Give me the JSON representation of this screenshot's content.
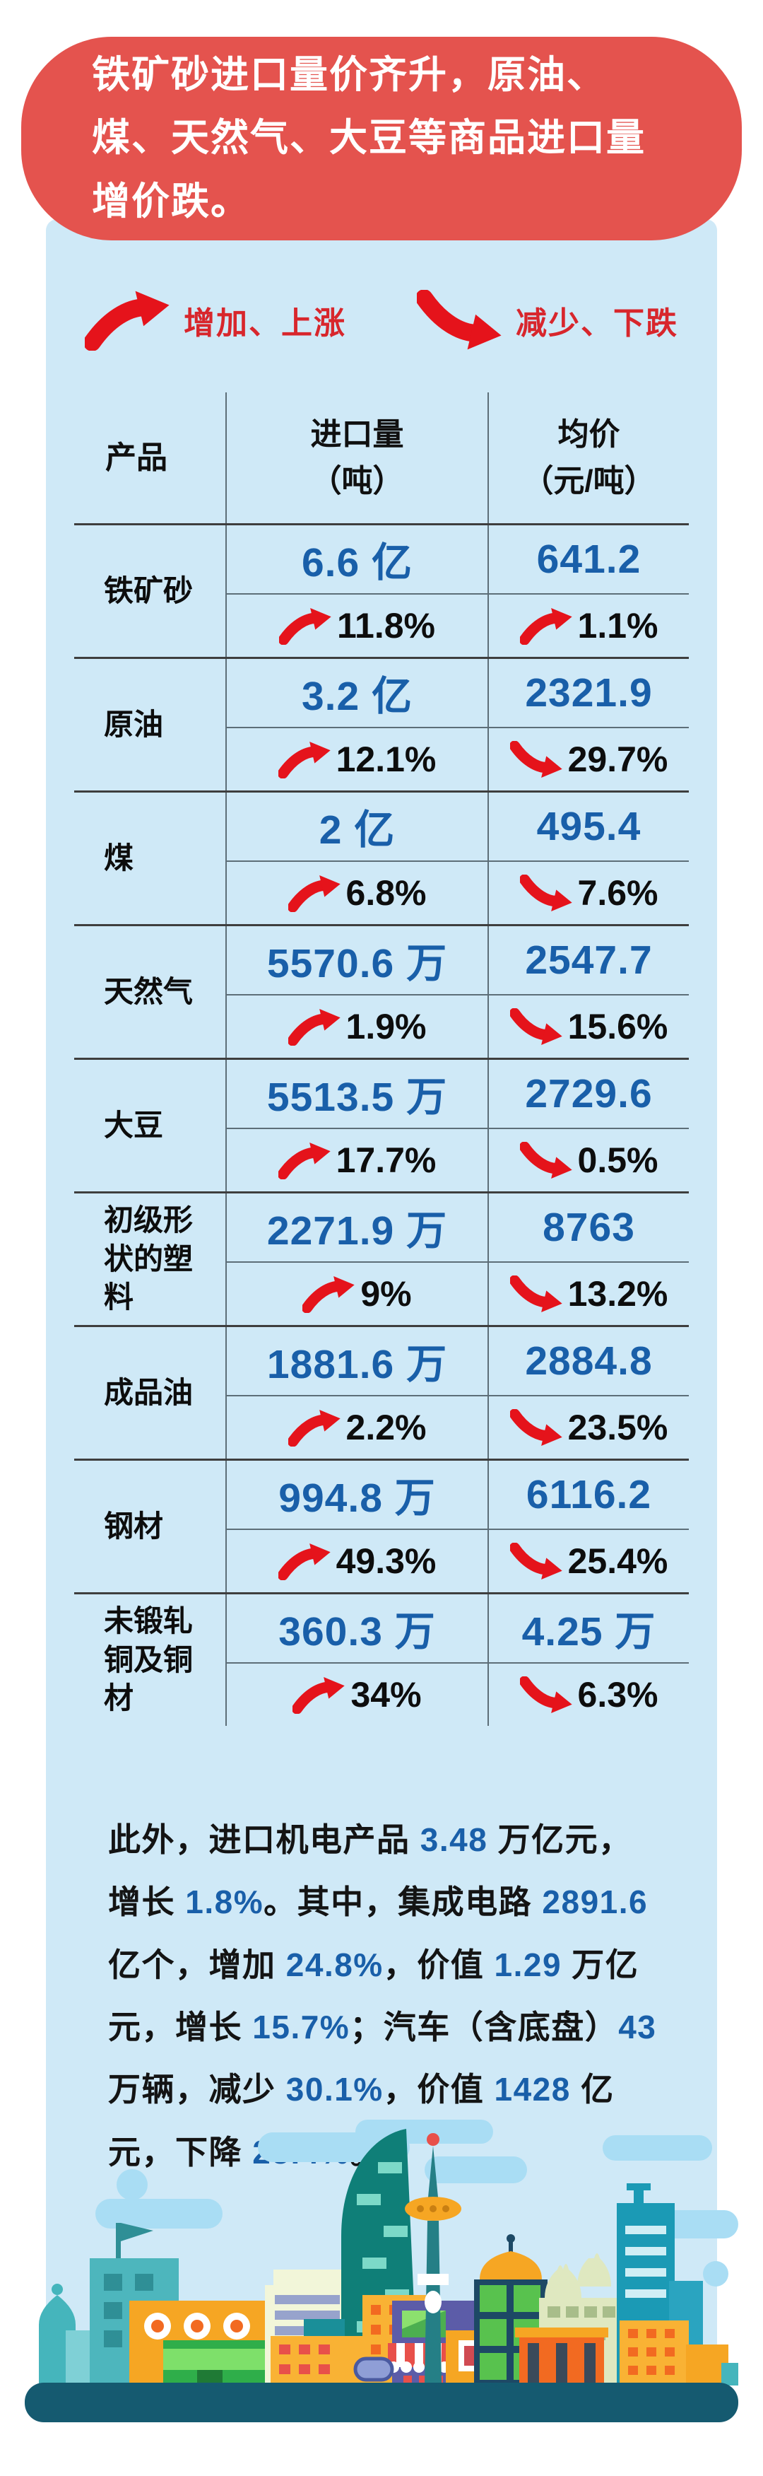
{
  "banner": {
    "title": "铁矿砂进口量价齐升，原油、煤、天然气、大豆等商品进口量增价跌。",
    "bg_color": "#e4534e",
    "text_color": "#ffffff"
  },
  "legend": {
    "up_label": "增加、上涨",
    "down_label": "减少、下跌",
    "arrow_color": "#e5131b",
    "text_color": "#d8262c"
  },
  "table": {
    "headers": {
      "product": "产品",
      "volume": "进口量\n（吨）",
      "price": "均价\n（元/吨）"
    }
  },
  "chart_data": {
    "type": "table",
    "title": "铁矿砂进口量价齐升，原油、煤、天然气、大豆等商品进口量增价跌。",
    "columns": [
      "产品",
      "进口量（吨）",
      "均价（元/吨）"
    ],
    "legend": [
      "增加、上涨",
      "减少、下跌"
    ],
    "rows": [
      {
        "product": "铁矿砂",
        "volume": "6.6 亿",
        "volume_change": "11.8%",
        "volume_dir": "up",
        "price": "641.2",
        "price_change": "1.1%",
        "price_dir": "up"
      },
      {
        "product": "原油",
        "volume": "3.2 亿",
        "volume_change": "12.1%",
        "volume_dir": "up",
        "price": "2321.9",
        "price_change": "29.7%",
        "price_dir": "down"
      },
      {
        "product": "煤",
        "volume": "2 亿",
        "volume_change": "6.8%",
        "volume_dir": "up",
        "price": "495.4",
        "price_change": "7.6%",
        "price_dir": "down"
      },
      {
        "product": "天然气",
        "volume": "5570.6 万",
        "volume_change": "1.9%",
        "volume_dir": "up",
        "price": "2547.7",
        "price_change": "15.6%",
        "price_dir": "down"
      },
      {
        "product": "大豆",
        "volume": "5513.5 万",
        "volume_change": "17.7%",
        "volume_dir": "up",
        "price": "2729.6",
        "price_change": "0.5%",
        "price_dir": "down"
      },
      {
        "product": "初级形状的塑料",
        "volume": "2271.9 万",
        "volume_change": "9%",
        "volume_dir": "up",
        "price": "8763",
        "price_change": "13.2%",
        "price_dir": "down"
      },
      {
        "product": "成品油",
        "volume": "1881.6 万",
        "volume_change": "2.2%",
        "volume_dir": "up",
        "price": "2884.8",
        "price_change": "23.5%",
        "price_dir": "down"
      },
      {
        "product": "钢材",
        "volume": "994.8 万",
        "volume_change": "49.3%",
        "volume_dir": "up",
        "price": "6116.2",
        "price_change": "25.4%",
        "price_dir": "down"
      },
      {
        "product": "未锻轧铜及铜材",
        "volume": "360.3 万",
        "volume_change": "34%",
        "volume_dir": "up",
        "price": "4.25 万",
        "price_change": "6.3%",
        "price_dir": "down"
      }
    ]
  },
  "paragraph": {
    "segments": [
      {
        "t": "此外，进口机电产品 ",
        "s": "text"
      },
      {
        "t": "3.48",
        "s": "num"
      },
      {
        "t": " 万亿元，增长 ",
        "s": "text"
      },
      {
        "t": "1.8%",
        "s": "num"
      },
      {
        "t": "。其中，集成电路 ",
        "s": "text"
      },
      {
        "t": "2891.6",
        "s": "num"
      },
      {
        "t": " 亿个，增加 ",
        "s": "text"
      },
      {
        "t": "24.8%",
        "s": "num"
      },
      {
        "t": "，价值 ",
        "s": "text"
      },
      {
        "t": "1.29",
        "s": "num"
      },
      {
        "t": " 万亿元，增长 ",
        "s": "text"
      },
      {
        "t": "15.7%",
        "s": "num"
      },
      {
        "t": "；汽车（含底盘）",
        "s": "text"
      },
      {
        "t": "43",
        "s": "num"
      },
      {
        "t": " 万辆，减少 ",
        "s": "text"
      },
      {
        "t": "30.1%",
        "s": "num"
      },
      {
        "t": "，价值 ",
        "s": "text"
      },
      {
        "t": "1428",
        "s": "num"
      },
      {
        "t": " 亿元，下降 ",
        "s": "text"
      },
      {
        "t": "25.4%",
        "s": "num"
      },
      {
        "t": "。",
        "s": "text"
      }
    ]
  },
  "colors": {
    "panel_bg": "#cfe9f7",
    "banner_red": "#e4534e",
    "arrow_red": "#e5131b",
    "number_blue": "#195fa9",
    "text_black": "#0d0d0d",
    "cloud_blue": "#a9ddf4",
    "base_bar_teal": "#155a70"
  }
}
